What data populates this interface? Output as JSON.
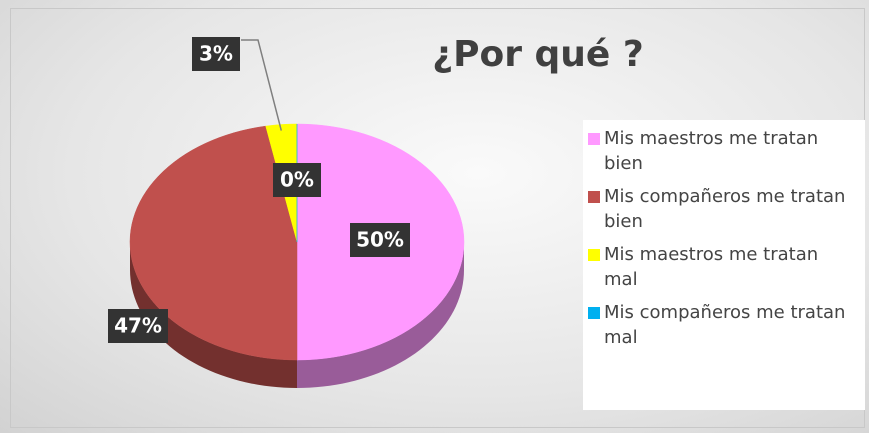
{
  "chart_data": {
    "type": "pie",
    "title": "¿Por qué ?",
    "categories": [
      "Mis maestros me tratan bien",
      "Mis compañeros me tratan bien",
      "Mis maestros me tratan mal",
      "Mis compañeros me tratan mal"
    ],
    "values": [
      50,
      47,
      3,
      0
    ],
    "value_labels": [
      "50%",
      "47%",
      "3%",
      "0%"
    ],
    "colors": [
      "#ff99ff",
      "#c0504d",
      "#ffff00",
      "#00b0f0"
    ],
    "legend": "right"
  }
}
